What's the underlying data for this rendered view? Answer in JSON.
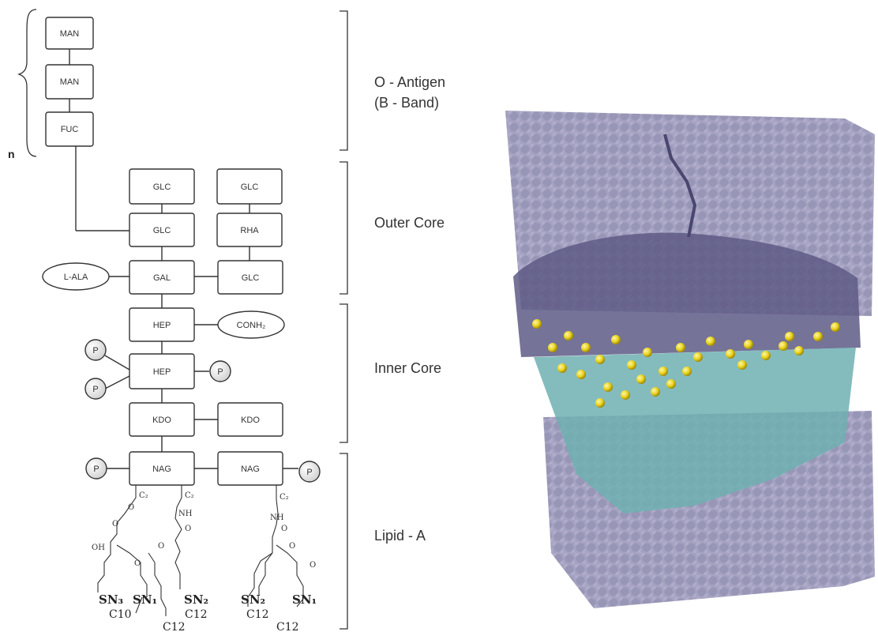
{
  "sections": [
    {
      "id": "o-antigen",
      "lines": [
        "O - Antigen",
        "(B - Band)"
      ]
    },
    {
      "id": "outer-core",
      "lines": [
        "Outer Core"
      ]
    },
    {
      "id": "inner-core",
      "lines": [
        "Inner Core"
      ]
    },
    {
      "id": "lipid-a",
      "lines": [
        "Lipid - A"
      ]
    }
  ],
  "repeat_label": "n",
  "boxes": {
    "man1": "MAN",
    "man2": "MAN",
    "fuc": "FUC",
    "glc1": "GLC",
    "glc2": "GLC",
    "glc3": "GLC",
    "rha": "RHA",
    "glc4": "GLC",
    "gal": "GAL",
    "hep1": "HEP",
    "hep2": "HEP",
    "kdo1": "KDO",
    "kdo2": "KDO",
    "nag1": "NAG",
    "nag2": "NAG"
  },
  "ovals": {
    "lala": "L-ALA",
    "conh2": "CONH₂"
  },
  "phosphate": "P",
  "lipid": {
    "c2": "C₂",
    "nh": "NH",
    "o": "O",
    "oh": "OH",
    "sn1": "SN₁",
    "sn2": "SN₂",
    "sn3": "SN₃",
    "c10": "C10",
    "c12": "C12"
  },
  "colors": {
    "box_stroke": "#333333",
    "lipid_slab": "#9a98b8",
    "phosphate_atoms": "#e8d21c",
    "tails": "#5aa8a8"
  }
}
